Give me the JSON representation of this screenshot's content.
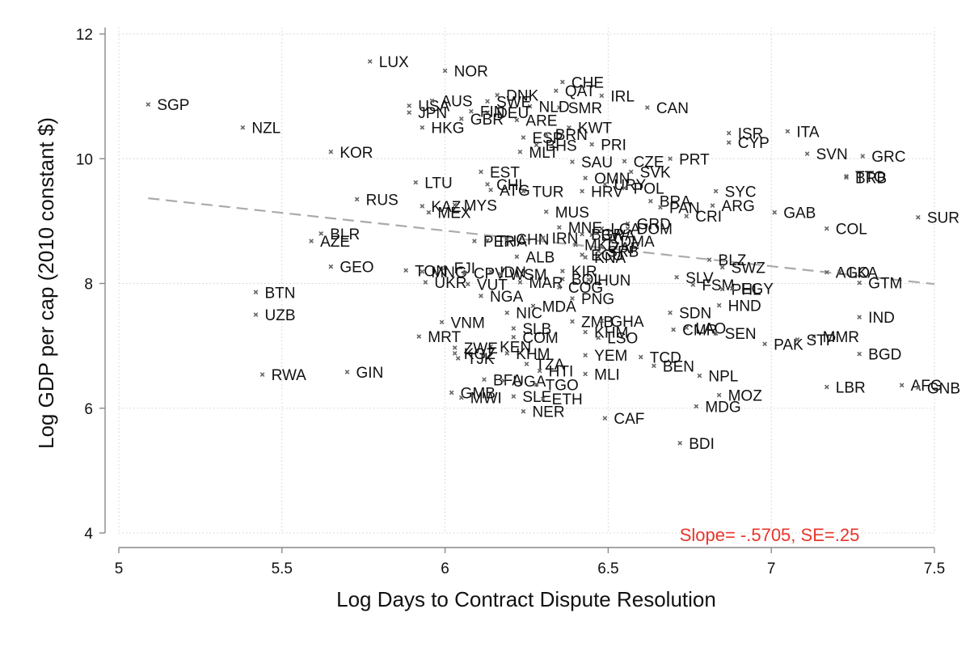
{
  "chart_data": {
    "type": "scatter",
    "xlabel": "Log Days to Contract Dispute Resolution",
    "ylabel": "Log GDP per cap (2010 constant $)",
    "xlim": [
      5,
      7.5
    ],
    "ylim": [
      4,
      12
    ],
    "xticks": [
      "5",
      "5.5",
      "6",
      "6.5",
      "7",
      "7.5"
    ],
    "yticks": [
      "4",
      "6",
      "8",
      "10",
      "12"
    ],
    "grid": true,
    "marker_color": "#666666",
    "fit_line": {
      "slope": -0.5705,
      "intercept": 12.27,
      "color": "#aaaaaa",
      "style": "dashed",
      "x_start": 5.09,
      "x_end": 7.5
    },
    "annotation": {
      "text": "Slope= -.5705, SE=.25",
      "color": "#e8352b"
    },
    "points": [
      {
        "label": "SGP",
        "x": 5.09,
        "y": 10.87
      },
      {
        "label": "LUX",
        "x": 5.77,
        "y": 11.56
      },
      {
        "label": "NOR",
        "x": 6.0,
        "y": 11.41
      },
      {
        "label": "NZL",
        "x": 5.38,
        "y": 10.5
      },
      {
        "label": "KOR",
        "x": 5.65,
        "y": 10.11
      },
      {
        "label": "CHE",
        "x": 6.36,
        "y": 11.23
      },
      {
        "label": "QAT",
        "x": 6.34,
        "y": 11.09
      },
      {
        "label": "IRL",
        "x": 6.48,
        "y": 11.01
      },
      {
        "label": "DNK",
        "x": 6.16,
        "y": 11.02
      },
      {
        "label": "SMR",
        "x": 6.35,
        "y": 10.82
      },
      {
        "label": "NLD",
        "x": 6.26,
        "y": 10.84
      },
      {
        "label": "USA",
        "x": 5.89,
        "y": 10.85
      },
      {
        "label": "AUS",
        "x": 5.96,
        "y": 10.93
      },
      {
        "label": "JPN",
        "x": 5.89,
        "y": 10.74
      },
      {
        "label": "SWE",
        "x": 6.13,
        "y": 10.92
      },
      {
        "label": "DEU",
        "x": 6.13,
        "y": 10.74
      },
      {
        "label": "FIN",
        "x": 6.08,
        "y": 10.76
      },
      {
        "label": "GBR",
        "x": 6.05,
        "y": 10.64
      },
      {
        "label": "ARE",
        "x": 6.22,
        "y": 10.62
      },
      {
        "label": "HKG",
        "x": 5.93,
        "y": 10.5
      },
      {
        "label": "CAN",
        "x": 6.62,
        "y": 10.82
      },
      {
        "label": "KWT",
        "x": 6.38,
        "y": 10.5
      },
      {
        "label": "ESP",
        "x": 6.24,
        "y": 10.34
      },
      {
        "label": "BRN",
        "x": 6.31,
        "y": 10.39
      },
      {
        "label": "PRI",
        "x": 6.45,
        "y": 10.23
      },
      {
        "label": "BHS",
        "x": 6.28,
        "y": 10.22
      },
      {
        "label": "MLT",
        "x": 6.23,
        "y": 10.11
      },
      {
        "label": "ISR",
        "x": 6.87,
        "y": 10.41
      },
      {
        "label": "CYP",
        "x": 6.87,
        "y": 10.26
      },
      {
        "label": "ITA",
        "x": 7.05,
        "y": 10.44
      },
      {
        "label": "SVN",
        "x": 7.11,
        "y": 10.08
      },
      {
        "label": "GRC",
        "x": 7.28,
        "y": 10.04
      },
      {
        "label": "PRT",
        "x": 6.69,
        "y": 10.0
      },
      {
        "label": "SAU",
        "x": 6.39,
        "y": 9.95
      },
      {
        "label": "CZE",
        "x": 6.55,
        "y": 9.96
      },
      {
        "label": "SVK",
        "x": 6.57,
        "y": 9.79
      },
      {
        "label": "EST",
        "x": 6.11,
        "y": 9.79
      },
      {
        "label": "TTO",
        "x": 7.23,
        "y": 9.72
      },
      {
        "label": "BRB",
        "x": 7.23,
        "y": 9.7
      },
      {
        "label": "OMN",
        "x": 6.43,
        "y": 9.69
      },
      {
        "label": "LTU",
        "x": 5.91,
        "y": 9.62
      },
      {
        "label": "CHL",
        "x": 6.13,
        "y": 9.59
      },
      {
        "label": "URY",
        "x": 6.49,
        "y": 9.59
      },
      {
        "label": "ATG",
        "x": 6.14,
        "y": 9.5
      },
      {
        "label": "TUR",
        "x": 6.24,
        "y": 9.48
      },
      {
        "label": "HRV",
        "x": 6.42,
        "y": 9.48
      },
      {
        "label": "POL",
        "x": 6.55,
        "y": 9.53
      },
      {
        "label": "SYC",
        "x": 6.83,
        "y": 9.48
      },
      {
        "label": "RUS",
        "x": 5.73,
        "y": 9.35
      },
      {
        "label": "KAZ",
        "x": 5.93,
        "y": 9.24
      },
      {
        "label": "MYS",
        "x": 6.03,
        "y": 9.26
      },
      {
        "label": "MEX",
        "x": 5.95,
        "y": 9.14
      },
      {
        "label": "BRA",
        "x": 6.63,
        "y": 9.32
      },
      {
        "label": "PAN",
        "w": 0,
        "x": 6.66,
        "y": 9.22
      },
      {
        "label": "ARG",
        "x": 6.82,
        "y": 9.25
      },
      {
        "label": "CRI",
        "x": 6.74,
        "y": 9.08
      },
      {
        "label": "GAB",
        "x": 7.01,
        "y": 9.14
      },
      {
        "label": "SUR",
        "x": 7.45,
        "y": 9.06
      },
      {
        "label": "MUS",
        "x": 6.31,
        "y": 9.15
      },
      {
        "label": "COL",
        "x": 7.17,
        "y": 8.88
      },
      {
        "label": "DOM",
        "x": 6.56,
        "y": 8.88
      },
      {
        "label": "GRD",
        "x": 6.56,
        "y": 8.96
      },
      {
        "label": "LCA",
        "x": 6.48,
        "y": 8.88
      },
      {
        "label": "MNE",
        "x": 6.35,
        "y": 8.9
      },
      {
        "label": "BWA",
        "x": 6.45,
        "y": 8.78
      },
      {
        "label": "BGR",
        "x": 6.42,
        "y": 8.79
      },
      {
        "label": "DMA",
        "x": 6.51,
        "y": 8.68
      },
      {
        "label": "MKD",
        "x": 6.4,
        "y": 8.62
      },
      {
        "label": "SRB",
        "x": 6.47,
        "y": 8.52
      },
      {
        "label": "PER",
        "x": 6.09,
        "y": 8.68
      },
      {
        "label": "THA",
        "x": 6.13,
        "y": 8.69
      },
      {
        "label": "CHN",
        "x": 6.19,
        "y": 8.71
      },
      {
        "label": "IRN",
        "x": 6.3,
        "y": 8.73
      },
      {
        "label": "BLR",
        "x": 5.62,
        "y": 8.8
      },
      {
        "label": "AZE",
        "x": 5.59,
        "y": 8.68
      },
      {
        "label": "ALB",
        "x": 6.22,
        "y": 8.43
      },
      {
        "label": "ZAF",
        "x": 6.48,
        "y": 8.58
      },
      {
        "label": "ECU",
        "x": 6.42,
        "y": 8.46
      },
      {
        "label": "KNA",
        "x": 6.43,
        "y": 8.42
      },
      {
        "label": "BLZ",
        "x": 6.81,
        "y": 8.38
      },
      {
        "label": "SWZ",
        "x": 6.85,
        "y": 8.26
      },
      {
        "label": "AGO",
        "x": 7.17,
        "y": 8.18
      },
      {
        "label": "LKA",
        "x": 7.21,
        "y": 8.18
      },
      {
        "label": "GEO",
        "x": 5.65,
        "y": 8.27
      },
      {
        "label": "FJI",
        "x": 6.0,
        "y": 8.25
      },
      {
        "label": "TON",
        "x": 5.88,
        "y": 8.21
      },
      {
        "label": "MNG",
        "x": 5.93,
        "y": 8.19
      },
      {
        "label": "IDN",
        "x": 6.14,
        "y": 8.19
      },
      {
        "label": "CPV",
        "x": 6.06,
        "y": 8.17
      },
      {
        "label": "WSM",
        "x": 6.17,
        "y": 8.15
      },
      {
        "label": "KIR",
        "x": 6.36,
        "y": 8.2
      },
      {
        "label": "HUN",
        "x": 6.44,
        "y": 8.06
      },
      {
        "label": "BOL",
        "x": 6.36,
        "y": 8.07
      },
      {
        "label": "SLV",
        "x": 6.71,
        "y": 8.1
      },
      {
        "label": "UKR",
        "x": 5.94,
        "y": 8.02
      },
      {
        "label": "VUT",
        "x": 6.07,
        "y": 7.99
      },
      {
        "label": "MAR",
        "x": 6.23,
        "y": 8.02
      },
      {
        "label": "COG",
        "x": 6.35,
        "y": 7.94
      },
      {
        "label": "GTM",
        "x": 7.27,
        "y": 8.01
      },
      {
        "label": "FSM",
        "x": 6.76,
        "y": 7.98
      },
      {
        "label": "PHL",
        "x": 6.85,
        "y": 7.91
      },
      {
        "label": "EGY",
        "x": 6.88,
        "y": 7.92
      },
      {
        "label": "BTN",
        "x": 5.42,
        "y": 7.86
      },
      {
        "label": "NGA",
        "x": 6.11,
        "y": 7.8
      },
      {
        "label": "PNG",
        "x": 6.39,
        "y": 7.76
      },
      {
        "label": "HND",
        "x": 6.84,
        "y": 7.65
      },
      {
        "label": "MDA",
        "x": 6.27,
        "y": 7.64
      },
      {
        "label": "UZB",
        "x": 5.42,
        "y": 7.5
      },
      {
        "label": "IND",
        "x": 7.27,
        "y": 7.46
      },
      {
        "label": "NIC",
        "x": 6.19,
        "y": 7.53
      },
      {
        "label": "SDN",
        "x": 6.69,
        "y": 7.53
      },
      {
        "label": "ZMB",
        "x": 6.39,
        "y": 7.39
      },
      {
        "label": "GHA",
        "x": 6.48,
        "y": 7.4
      },
      {
        "label": "VNM",
        "x": 5.99,
        "y": 7.38
      },
      {
        "label": "SLB",
        "x": 6.21,
        "y": 7.28
      },
      {
        "label": "KHM",
        "x": 6.43,
        "y": 7.22
      },
      {
        "label": "LAO",
        "x": 6.74,
        "y": 7.29
      },
      {
        "label": "CMR",
        "x": 6.7,
        "y": 7.26
      },
      {
        "label": "SEN",
        "x": 6.83,
        "y": 7.2
      },
      {
        "label": "COM",
        "x": 6.21,
        "y": 7.14
      },
      {
        "label": "LSO",
        "x": 6.47,
        "y": 7.13
      },
      {
        "label": "MRT",
        "x": 5.92,
        "y": 7.15
      },
      {
        "label": "MMR",
        "x": 7.13,
        "y": 7.15
      },
      {
        "label": "STP",
        "x": 7.08,
        "y": 7.1
      },
      {
        "label": "PAK",
        "x": 6.98,
        "y": 7.03
      },
      {
        "label": "KEN",
        "x": 6.14,
        "y": 6.99
      },
      {
        "label": "ZWE",
        "x": 6.03,
        "y": 6.97
      },
      {
        "label": "KGZ",
        "x": 6.03,
        "y": 6.88
      },
      {
        "label": "TJK",
        "x": 6.04,
        "y": 6.8
      },
      {
        "label": "KHM",
        "x": 6.19,
        "y": 6.88
      },
      {
        "label": "YEM",
        "x": 6.43,
        "y": 6.85
      },
      {
        "label": "TCD",
        "x": 6.6,
        "y": 6.82
      },
      {
        "label": "BGD",
        "x": 7.27,
        "y": 6.87
      },
      {
        "label": "BEN",
        "x": 6.64,
        "y": 6.68
      },
      {
        "label": "TZA",
        "x": 6.25,
        "y": 6.71
      },
      {
        "label": "HTI",
        "x": 6.29,
        "y": 6.6
      },
      {
        "label": "MLI",
        "x": 6.43,
        "y": 6.55
      },
      {
        "label": "RWA",
        "x": 5.44,
        "y": 6.54
      },
      {
        "label": "GIN",
        "x": 5.7,
        "y": 6.58
      },
      {
        "label": "NPL",
        "x": 6.78,
        "y": 6.52
      },
      {
        "label": "BFA",
        "x": 6.12,
        "y": 6.46
      },
      {
        "label": "UGA",
        "x": 6.18,
        "y": 6.44
      },
      {
        "label": "TGO",
        "x": 6.28,
        "y": 6.38
      },
      {
        "label": "AFG",
        "x": 7.4,
        "y": 6.37
      },
      {
        "label": "GNB",
        "x": 7.45,
        "y": 6.33
      },
      {
        "label": "LBR",
        "x": 7.17,
        "y": 6.34
      },
      {
        "label": "GMB",
        "x": 6.02,
        "y": 6.25
      },
      {
        "label": "MOZ",
        "x": 6.84,
        "y": 6.21
      },
      {
        "label": "MWI",
        "x": 6.05,
        "y": 6.17
      },
      {
        "label": "SLE",
        "x": 6.21,
        "y": 6.19
      },
      {
        "label": "ETH",
        "x": 6.3,
        "y": 6.15
      },
      {
        "label": "MDG",
        "x": 6.77,
        "y": 6.03
      },
      {
        "label": "NER",
        "x": 6.24,
        "y": 5.95
      },
      {
        "label": "CAF",
        "x": 6.49,
        "y": 5.84
      },
      {
        "label": "BDI",
        "x": 6.72,
        "y": 5.44
      }
    ]
  }
}
